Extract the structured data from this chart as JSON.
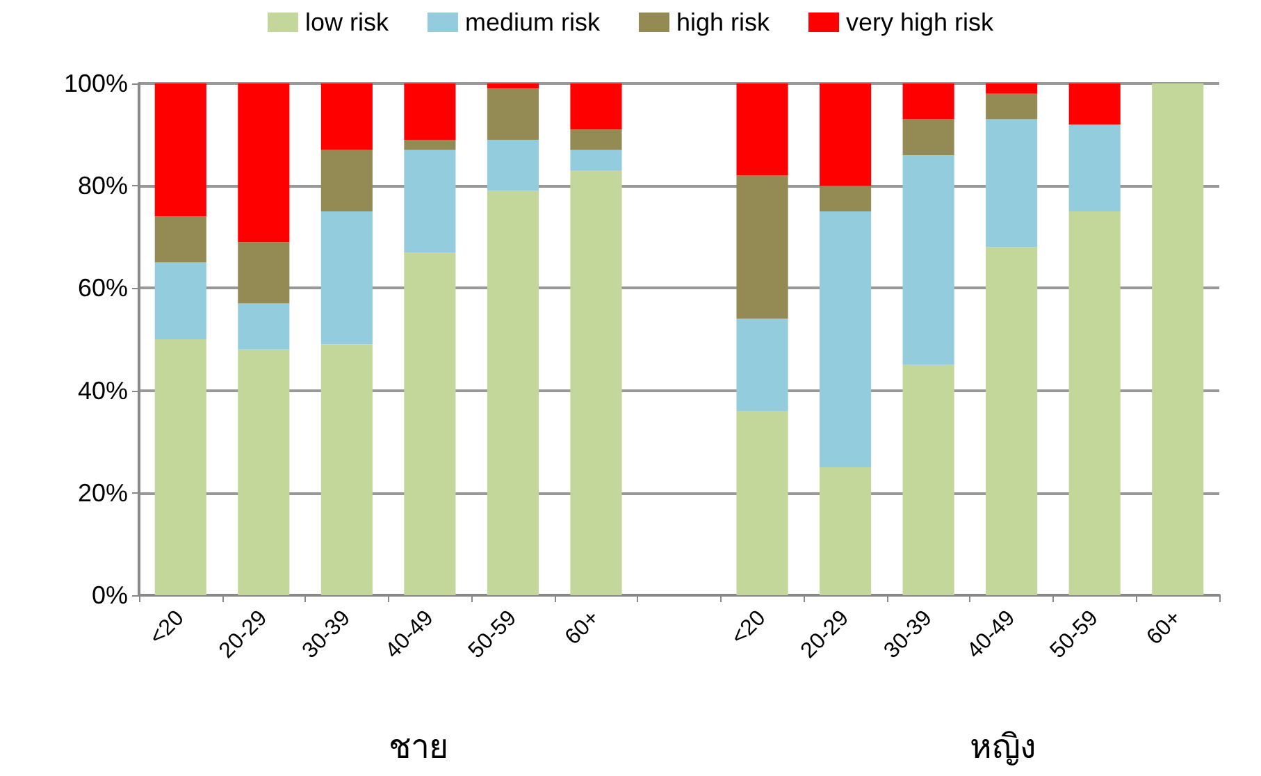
{
  "chart_data": {
    "type": "bar",
    "stacked": true,
    "categories": [
      "<20",
      "20-29",
      "30-39",
      "40-49",
      "50-59",
      "60+",
      null,
      "<20",
      "20-29",
      "30-39",
      "40-49",
      "50-59",
      "60+"
    ],
    "series": [
      {
        "name": "low risk",
        "color": "#c4d79b",
        "values": [
          50,
          48,
          49,
          67,
          79,
          83,
          null,
          36,
          25,
          45,
          68,
          75,
          100
        ]
      },
      {
        "name": "medium risk",
        "color": "#93cddd",
        "values": [
          15,
          9,
          26,
          20,
          10,
          4,
          null,
          18,
          50,
          41,
          25,
          17,
          0
        ]
      },
      {
        "name": "high risk",
        "color": "#948a54",
        "values": [
          9,
          12,
          12,
          2,
          10,
          4,
          null,
          28,
          5,
          7,
          5,
          0,
          0
        ]
      },
      {
        "name": "very high risk",
        "color": "#ff0000",
        "values": [
          26,
          31,
          13,
          11,
          1,
          9,
          null,
          18,
          20,
          7,
          2,
          8,
          0
        ]
      }
    ],
    "ylim": [
      0,
      100
    ],
    "yticks": [
      {
        "value": 0,
        "label": "0%"
      },
      {
        "value": 20,
        "label": "20%"
      },
      {
        "value": 40,
        "label": "40%"
      },
      {
        "value": 60,
        "label": "60%"
      },
      {
        "value": 80,
        "label": "80%"
      },
      {
        "value": 100,
        "label": "100%"
      }
    ],
    "grid": "y",
    "legend": "top",
    "annotations": [
      "ชาย",
      "หญิง"
    ]
  }
}
